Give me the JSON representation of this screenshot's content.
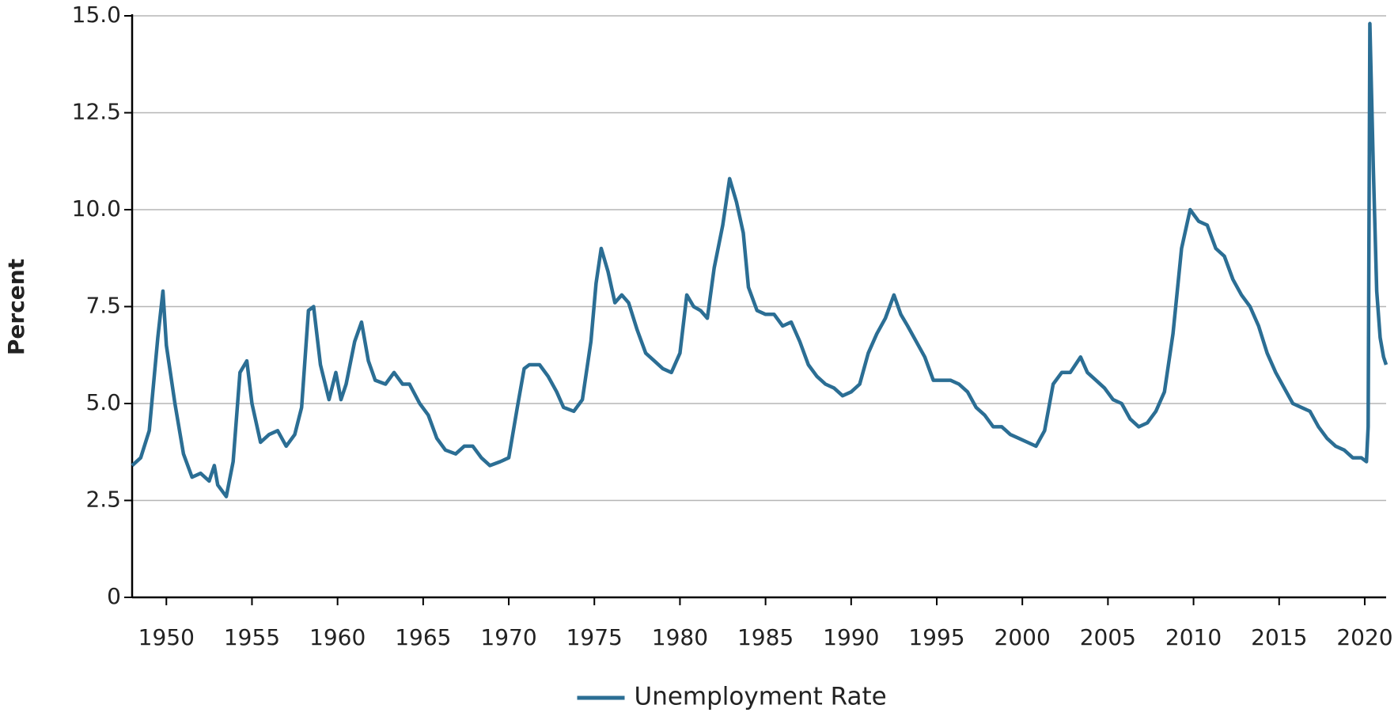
{
  "chart_data": {
    "type": "line",
    "y_label": "Percent",
    "xlim": [
      1948,
      2021.25
    ],
    "xticks": [
      1950,
      1955,
      1960,
      1965,
      1970,
      1975,
      1980,
      1985,
      1990,
      1995,
      2000,
      2005,
      2010,
      2015,
      2020
    ],
    "ylim": [
      0,
      15
    ],
    "yticks": [
      0,
      {
        "value": 2.5,
        "label": "2.5"
      },
      {
        "value": 5,
        "label": "5.0"
      },
      {
        "value": 7.5,
        "label": "7.5"
      },
      {
        "value": 10,
        "label": "10.0"
      },
      {
        "value": 12.5,
        "label": "12.5"
      },
      {
        "value": 15,
        "label": "15.0"
      }
    ],
    "grid": true,
    "legend": "bottom",
    "x": [
      1948.0,
      1948.5,
      1949.0,
      1949.5,
      1949.8,
      1950.0,
      1950.5,
      1951.0,
      1951.5,
      1952.0,
      1952.5,
      1952.8,
      1953.0,
      1953.5,
      1953.9,
      1954.3,
      1954.7,
      1955.0,
      1955.5,
      1956.0,
      1956.5,
      1957.0,
      1957.5,
      1957.9,
      1958.3,
      1958.6,
      1959.0,
      1959.5,
      1959.9,
      1960.2,
      1960.5,
      1961.0,
      1961.4,
      1961.8,
      1962.2,
      1962.8,
      1963.3,
      1963.8,
      1964.2,
      1964.8,
      1965.3,
      1965.8,
      1966.3,
      1966.9,
      1967.4,
      1967.9,
      1968.4,
      1968.9,
      1969.5,
      1970.0,
      1970.5,
      1970.9,
      1971.2,
      1971.8,
      1972.3,
      1972.8,
      1973.2,
      1973.8,
      1974.3,
      1974.8,
      1975.1,
      1975.4,
      1975.8,
      1976.2,
      1976.6,
      1977.0,
      1977.5,
      1978.0,
      1978.5,
      1979.0,
      1979.5,
      1980.0,
      1980.4,
      1980.8,
      1981.2,
      1981.6,
      1982.0,
      1982.5,
      1982.9,
      1983.3,
      1983.7,
      1984.0,
      1984.5,
      1985.0,
      1985.5,
      1986.0,
      1986.5,
      1987.0,
      1987.5,
      1988.0,
      1988.5,
      1989.0,
      1989.5,
      1990.0,
      1990.5,
      1991.0,
      1991.5,
      1992.0,
      1992.5,
      1992.9,
      1993.3,
      1993.8,
      1994.3,
      1994.8,
      1995.3,
      1995.8,
      1996.3,
      1996.8,
      1997.3,
      1997.8,
      1998.3,
      1998.8,
      1999.3,
      1999.8,
      2000.3,
      2000.8,
      2001.3,
      2001.8,
      2002.3,
      2002.8,
      2003.4,
      2003.8,
      2004.3,
      2004.8,
      2005.3,
      2005.8,
      2006.3,
      2006.8,
      2007.3,
      2007.8,
      2008.3,
      2008.8,
      2009.3,
      2009.8,
      2010.3,
      2010.8,
      2011.3,
      2011.8,
      2012.3,
      2012.8,
      2013.3,
      2013.8,
      2014.3,
      2014.8,
      2015.3,
      2015.8,
      2016.3,
      2016.8,
      2017.3,
      2017.8,
      2018.3,
      2018.8,
      2019.3,
      2019.8,
      2020.1,
      2020.2,
      2020.3,
      2020.5,
      2020.7,
      2020.9,
      2021.1,
      2021.25
    ],
    "series": [
      {
        "name": "Unemployment Rate",
        "color": "#2b6e94",
        "values": [
          3.4,
          3.6,
          4.3,
          6.7,
          7.9,
          6.5,
          5.0,
          3.7,
          3.1,
          3.2,
          3.0,
          3.4,
          2.9,
          2.6,
          3.5,
          5.8,
          6.1,
          5.0,
          4.0,
          4.2,
          4.3,
          3.9,
          4.2,
          4.9,
          7.4,
          7.5,
          6.0,
          5.1,
          5.8,
          5.1,
          5.5,
          6.6,
          7.1,
          6.1,
          5.6,
          5.5,
          5.8,
          5.5,
          5.5,
          5.0,
          4.7,
          4.1,
          3.8,
          3.7,
          3.9,
          3.9,
          3.6,
          3.4,
          3.5,
          3.6,
          4.9,
          5.9,
          6.0,
          6.0,
          5.7,
          5.3,
          4.9,
          4.8,
          5.1,
          6.6,
          8.1,
          9.0,
          8.4,
          7.6,
          7.8,
          7.6,
          6.9,
          6.3,
          6.1,
          5.9,
          5.8,
          6.3,
          7.8,
          7.5,
          7.4,
          7.2,
          8.5,
          9.6,
          10.8,
          10.2,
          9.4,
          8.0,
          7.4,
          7.3,
          7.3,
          7.0,
          7.1,
          6.6,
          6.0,
          5.7,
          5.5,
          5.4,
          5.2,
          5.3,
          5.5,
          6.3,
          6.8,
          7.2,
          7.8,
          7.3,
          7.0,
          6.6,
          6.2,
          5.6,
          5.6,
          5.6,
          5.5,
          5.3,
          4.9,
          4.7,
          4.4,
          4.4,
          4.2,
          4.1,
          4.0,
          3.9,
          4.3,
          5.5,
          5.8,
          5.8,
          6.2,
          5.8,
          5.6,
          5.4,
          5.1,
          5.0,
          4.6,
          4.4,
          4.5,
          4.8,
          5.3,
          6.8,
          9.0,
          10.0,
          9.7,
          9.6,
          9.0,
          8.8,
          8.2,
          7.8,
          7.5,
          7.0,
          6.3,
          5.8,
          5.4,
          5.0,
          4.9,
          4.8,
          4.4,
          4.1,
          3.9,
          3.8,
          3.6,
          3.6,
          3.5,
          4.4,
          14.8,
          11.1,
          7.9,
          6.7,
          6.2,
          6.0
        ]
      }
    ]
  }
}
